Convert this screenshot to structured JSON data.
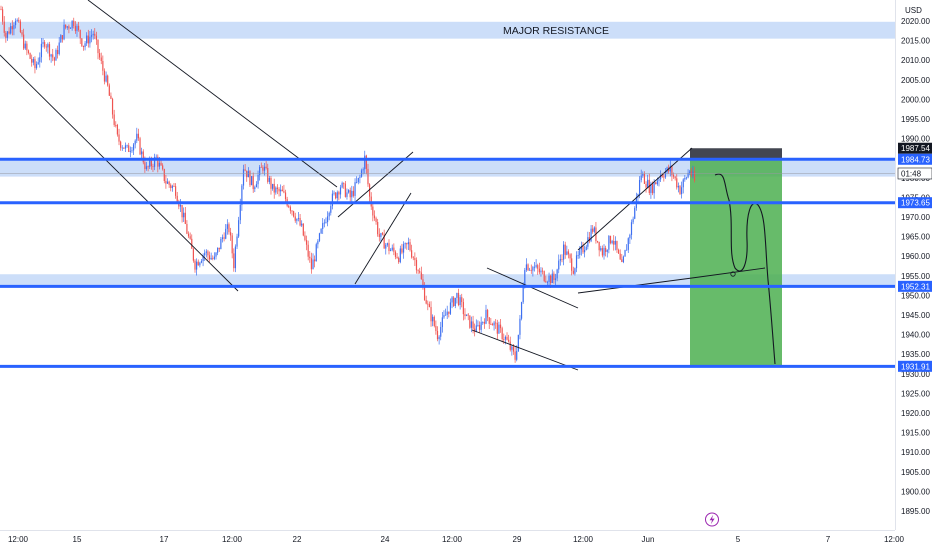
{
  "chart_data": {
    "type": "candlestick",
    "currency": "USD",
    "y_ticks": [
      2020,
      2015,
      2010,
      2005,
      2000,
      1995,
      1990,
      1985,
      1980,
      1975,
      1970,
      1965,
      1960,
      1955,
      1950,
      1945,
      1940,
      1935,
      1930,
      1925,
      1920,
      1915,
      1910,
      1905,
      1900,
      1895
    ],
    "ylim": [
      1892,
      2024
    ],
    "x_ticks": [
      "12:00",
      "15",
      "17",
      "12:00",
      "22",
      "24",
      "12:00",
      "29",
      "12:00",
      "Jun",
      "5",
      "7",
      "12:00"
    ],
    "price_levels": [
      {
        "label": "1987.54",
        "value": 1987.54,
        "kind": "marker"
      },
      {
        "label": "1984.73",
        "value": 1984.73,
        "kind": "line"
      },
      {
        "label": "01:48",
        "value": 1981.1,
        "kind": "countdown"
      },
      {
        "label": "1973.65",
        "value": 1973.65,
        "kind": "line"
      },
      {
        "label": "1952.31",
        "value": 1952.31,
        "kind": "line"
      },
      {
        "label": "1931.91",
        "value": 1931.91,
        "kind": "line"
      }
    ],
    "zones": [
      {
        "label": "MAJOR RESISTANCE",
        "from": 2015.5,
        "to": 2019.8
      },
      {
        "label": "",
        "from": 1980.3,
        "to": 1984.6
      },
      {
        "label": "",
        "from": 1952.3,
        "to": 1955.4
      }
    ],
    "position": {
      "entry": 1984.73,
      "stop": 1987.54,
      "target": 1931.91
    },
    "candle_path": [
      [
        0,
        2023
      ],
      [
        1,
        2016
      ],
      [
        3,
        2021
      ],
      [
        5,
        2013
      ],
      [
        7,
        2008
      ],
      [
        9,
        2015
      ],
      [
        11,
        2010
      ],
      [
        13,
        2018
      ],
      [
        15,
        2020
      ],
      [
        17,
        2014
      ],
      [
        19,
        2017
      ],
      [
        20,
        2012
      ],
      [
        22,
        2003
      ],
      [
        24,
        1990
      ],
      [
        26,
        1987
      ],
      [
        28,
        1990
      ],
      [
        30,
        1982
      ],
      [
        32,
        1985
      ],
      [
        34,
        1979
      ],
      [
        36,
        1977
      ],
      [
        38,
        1968
      ],
      [
        40,
        1958
      ],
      [
        42,
        1961
      ],
      [
        44,
        1959
      ],
      [
        46,
        1966
      ],
      [
        47,
        1967
      ],
      [
        48,
        1958
      ],
      [
        50,
        1983
      ],
      [
        52,
        1978
      ],
      [
        54,
        1983
      ],
      [
        56,
        1977
      ],
      [
        58,
        1976
      ],
      [
        60,
        1972
      ],
      [
        62,
        1967
      ],
      [
        64,
        1957
      ],
      [
        66,
        1966
      ],
      [
        68,
        1974
      ],
      [
        70,
        1978
      ],
      [
        72,
        1975
      ],
      [
        74,
        1980
      ],
      [
        75,
        1985
      ],
      [
        76,
        1975
      ],
      [
        78,
        1965
      ],
      [
        80,
        1962
      ],
      [
        82,
        1960
      ],
      [
        84,
        1963
      ],
      [
        86,
        1957
      ],
      [
        88,
        1947
      ],
      [
        90,
        1940
      ],
      [
        92,
        1946
      ],
      [
        94,
        1950
      ],
      [
        96,
        1944
      ],
      [
        98,
        1941
      ],
      [
        100,
        1945
      ],
      [
        102,
        1942
      ],
      [
        104,
        1939
      ],
      [
        106,
        1934
      ],
      [
        107,
        1943
      ],
      [
        108,
        1958
      ],
      [
        110,
        1957
      ],
      [
        112,
        1955
      ],
      [
        114,
        1954
      ],
      [
        116,
        1962
      ],
      [
        118,
        1957
      ],
      [
        120,
        1962
      ],
      [
        122,
        1967
      ],
      [
        124,
        1961
      ],
      [
        126,
        1965
      ],
      [
        128,
        1957
      ],
      [
        130,
        1968
      ],
      [
        132,
        1981
      ],
      [
        134,
        1977
      ],
      [
        136,
        1981
      ],
      [
        138,
        1982
      ],
      [
        140,
        1977
      ],
      [
        142,
        1982
      ],
      [
        143,
        1979
      ]
    ]
  }
}
